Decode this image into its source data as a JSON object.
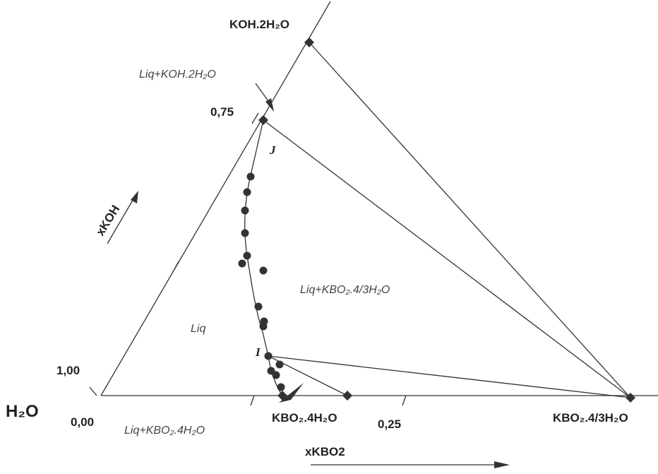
{
  "diagram": {
    "vertex_top": "KOH.2H₂O",
    "vertex_left": "H₂O",
    "vertex_right": "KBO₂.4/3H₂O",
    "compound_bottom": "KBO₂.4H₂O",
    "axis_koh": "xKOH",
    "axis_kbo2": "xKBO2",
    "tick_075": "0,75",
    "tick_100": "1,00",
    "tick_000": "0,00",
    "tick_025": "0,25",
    "point_j": "J",
    "point_i": "I",
    "region_liq": "Liq",
    "region_liq_koh": "Liq+KOH.2H₂O",
    "region_liq_kbo2_43": "Liq+KBO₂.4/3H₂O",
    "region_liq_kbo2_4": "Liq+KBO₂.4H₂O"
  }
}
